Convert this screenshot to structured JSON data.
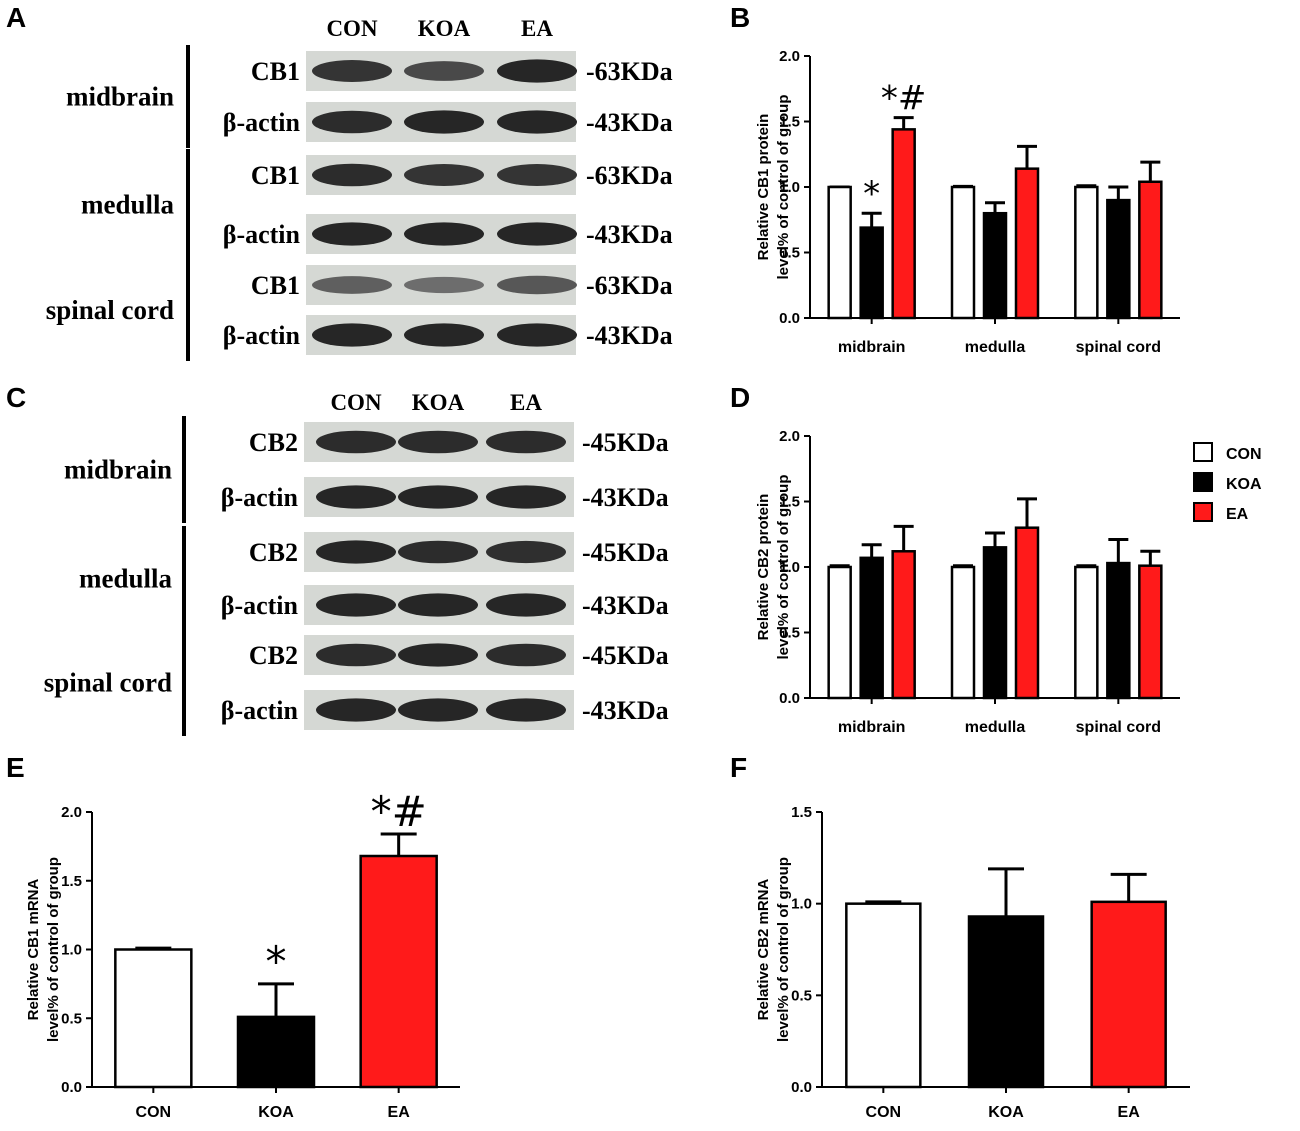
{
  "panel_letters": [
    "A",
    "B",
    "C",
    "D",
    "E",
    "F"
  ],
  "blot_panels": [
    {
      "letter": "A",
      "lane_labels": [
        "CON",
        "KOA",
        "EA"
      ],
      "regions": [
        {
          "region": "midbrain",
          "rows": [
            {
              "protein": "CB1",
              "size": "-63KDa",
              "intensity": [
                0.85,
                0.7,
                0.95
              ]
            },
            {
              "protein": "β-actin",
              "size": "-43KDa",
              "intensity": [
                0.9,
                0.95,
                0.95
              ]
            }
          ]
        },
        {
          "region": "medulla",
          "rows": [
            {
              "protein": "CB1",
              "size": "-63KDa",
              "intensity": [
                0.9,
                0.85,
                0.85
              ]
            },
            {
              "protein": "β-actin",
              "size": "-43KDa",
              "intensity": [
                0.95,
                0.95,
                0.95
              ]
            }
          ]
        },
        {
          "region": "spinal cord",
          "rows": [
            {
              "protein": "CB1",
              "size": "-63KDa",
              "intensity": [
                0.55,
                0.45,
                0.6
              ]
            },
            {
              "protein": "β-actin",
              "size": "-43KDa",
              "intensity": [
                0.95,
                0.95,
                0.95
              ]
            }
          ]
        }
      ]
    },
    {
      "letter": "C",
      "lane_labels": [
        "CON",
        "KOA",
        "EA"
      ],
      "regions": [
        {
          "region": "midbrain",
          "rows": [
            {
              "protein": "CB2",
              "size": "-45KDa",
              "intensity": [
                0.9,
                0.9,
                0.9
              ]
            },
            {
              "protein": "β-actin",
              "size": "-43KDa",
              "intensity": [
                0.95,
                0.95,
                0.95
              ]
            }
          ]
        },
        {
          "region": "medulla",
          "rows": [
            {
              "protein": "CB2",
              "size": "-45KDa",
              "intensity": [
                0.95,
                0.9,
                0.88
              ]
            },
            {
              "protein": "β-actin",
              "size": "-43KDa",
              "intensity": [
                0.95,
                0.95,
                0.95
              ]
            }
          ]
        },
        {
          "region": "spinal cord",
          "rows": [
            {
              "protein": "CB2",
              "size": "-45KDa",
              "intensity": [
                0.9,
                0.95,
                0.9
              ]
            },
            {
              "protein": "β-actin",
              "size": "-43KDa",
              "intensity": [
                0.95,
                0.95,
                0.95
              ]
            }
          ]
        }
      ]
    }
  ],
  "legend": {
    "entries": [
      {
        "name": "CON",
        "color": "#ffffff"
      },
      {
        "name": "KOA",
        "color": "#000000"
      },
      {
        "name": "EA",
        "color": "#ff1a1a"
      }
    ]
  },
  "chart_data": [
    {
      "panel": "B",
      "type": "bar",
      "ylabel_lines": [
        "Relative CB1 protein",
        "level% of control of group"
      ],
      "ylim": [
        0,
        2.0
      ],
      "yticks": [
        "0.0",
        "0.5",
        "1.0",
        "1.5",
        "2.0"
      ],
      "categories": [
        "midbrain",
        "medulla",
        "spinal cord"
      ],
      "series": [
        {
          "name": "CON",
          "color": "#ffffff",
          "values": [
            1.0,
            1.0,
            1.0
          ],
          "errors": [
            0.0,
            0.005,
            0.01
          ]
        },
        {
          "name": "KOA",
          "color": "#000000",
          "values": [
            0.69,
            0.8,
            0.9
          ],
          "errors": [
            0.11,
            0.08,
            0.1
          ]
        },
        {
          "name": "EA",
          "color": "#ff1a1a",
          "values": [
            1.44,
            1.14,
            1.04
          ],
          "errors": [
            0.09,
            0.17,
            0.15
          ]
        }
      ],
      "annotations": [
        {
          "category": 0,
          "series": 1,
          "text": "*"
        },
        {
          "category": 0,
          "series": 2,
          "text": "*#"
        }
      ]
    },
    {
      "panel": "D",
      "type": "bar",
      "ylabel_lines": [
        "Relative CB2 protein",
        "level% of control of group"
      ],
      "ylim": [
        0,
        2.0
      ],
      "yticks": [
        "0.0",
        "0.5",
        "1.0",
        "1.5",
        "2.0"
      ],
      "categories": [
        "midbrain",
        "medulla",
        "spinal cord"
      ],
      "series": [
        {
          "name": "CON",
          "color": "#ffffff",
          "values": [
            1.0,
            1.0,
            1.0
          ],
          "errors": [
            0.01,
            0.01,
            0.01
          ]
        },
        {
          "name": "KOA",
          "color": "#000000",
          "values": [
            1.07,
            1.15,
            1.03
          ],
          "errors": [
            0.1,
            0.11,
            0.18
          ]
        },
        {
          "name": "EA",
          "color": "#ff1a1a",
          "values": [
            1.12,
            1.3,
            1.01
          ],
          "errors": [
            0.19,
            0.22,
            0.11
          ]
        }
      ],
      "annotations": []
    },
    {
      "panel": "E",
      "type": "bar",
      "ylabel_lines": [
        "Relative CB1 mRNA",
        "level% of control of group"
      ],
      "ylim": [
        0,
        2.0
      ],
      "yticks": [
        "0.0",
        "0.5",
        "1.0",
        "1.5",
        "2.0"
      ],
      "categories": [
        "CON",
        "KOA",
        "EA"
      ],
      "series": [
        {
          "name": "value",
          "colors": [
            "#ffffff",
            "#000000",
            "#ff1a1a"
          ],
          "values": [
            1.0,
            0.51,
            1.68
          ],
          "errors": [
            0.01,
            0.24,
            0.16
          ]
        }
      ],
      "annotations": [
        {
          "category": 1,
          "series": 0,
          "text": "*"
        },
        {
          "category": 2,
          "series": 0,
          "text": "*#"
        }
      ]
    },
    {
      "panel": "F",
      "type": "bar",
      "ylabel_lines": [
        "Relative CB2 mRNA",
        "level% of control of group"
      ],
      "ylim": [
        0,
        1.5
      ],
      "yticks": [
        "0.0",
        "0.5",
        "1.0",
        "1.5"
      ],
      "categories": [
        "CON",
        "KOA",
        "EA"
      ],
      "series": [
        {
          "name": "value",
          "colors": [
            "#ffffff",
            "#000000",
            "#ff1a1a"
          ],
          "values": [
            1.0,
            0.93,
            1.01
          ],
          "errors": [
            0.01,
            0.26,
            0.15
          ]
        }
      ],
      "annotations": []
    }
  ]
}
